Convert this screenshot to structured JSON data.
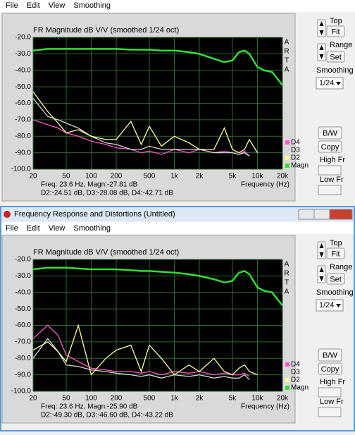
{
  "windows": [
    {
      "menu": [
        "File",
        "Edit",
        "View",
        "Smoothing"
      ],
      "controls": {
        "top": "Top",
        "fit": "Fit",
        "range": "Range",
        "set": "Set",
        "smoothing": "Smoothing",
        "smoothing_value": "1/24",
        "bw": "B/W",
        "copy": "Copy",
        "high_fr": "High Fr",
        "low_fr": "Low Fr"
      }
    },
    {
      "title": "Frequency Response and Distortions (Untitled)",
      "menu": [
        "File",
        "Edit",
        "View",
        "Smoothing"
      ],
      "controls": {
        "top": "Top",
        "fit": "Fit",
        "range": "Range",
        "set": "Set",
        "smoothing": "Smoothing",
        "smoothing_value": "1/24",
        "bw": "B/W",
        "copy": "Copy",
        "high_fr": "High Fr",
        "low_fr": "Low Fr"
      }
    }
  ],
  "chart_data": [
    {
      "type": "line",
      "title": "FR Magnitude dB V/V (smoothed 1/24 oct)",
      "x_label": "Frequency (Hz)",
      "side_letters": [
        "A",
        "R",
        "T",
        "A"
      ],
      "annotations": [
        "Freq: 23.6 Hz, Magn:-27.81 dB",
        "D2:-24.51 dB, D3:-28.08 dB, D4:-42.71 dB"
      ],
      "log_x": true,
      "grid": true,
      "xlim": [
        20,
        20000
      ],
      "ylim": [
        -100,
        -20
      ],
      "xticks": [
        20,
        50,
        100,
        200,
        500,
        {
          "value": 1000,
          "label": "1k"
        },
        {
          "value": 2000,
          "label": "2k"
        },
        {
          "value": 5000,
          "label": "5k"
        },
        {
          "value": 10000,
          "label": "10k"
        },
        {
          "value": 20000,
          "label": "20k"
        }
      ],
      "yticks": [
        {
          "value": -20,
          "label": "-20.0"
        },
        {
          "value": -30,
          "label": "-30.0"
        },
        {
          "value": -40,
          "label": "-40.0"
        },
        {
          "value": -50,
          "label": "-50.0"
        },
        {
          "value": -60,
          "label": "-60.0"
        },
        {
          "value": -70,
          "label": "-70.0"
        },
        {
          "value": -80,
          "label": "-80.0"
        },
        {
          "value": -90,
          "label": "-90.0"
        },
        {
          "value": -100,
          "label": "-100.0"
        }
      ],
      "x": [
        20,
        30,
        40,
        50,
        70,
        100,
        150,
        200,
        300,
        400,
        500,
        700,
        1000,
        1500,
        2000,
        3000,
        4000,
        5000,
        6000,
        7000,
        8000,
        10000,
        12000,
        15000,
        20000
      ],
      "series": [
        {
          "name": "D4",
          "color": "#ff55cc",
          "values": [
            -70,
            -73,
            -75,
            -78,
            -80,
            -83,
            -85,
            -87,
            -88,
            -90,
            -89,
            -91,
            -88,
            -90,
            -88,
            -90,
            -89,
            -90,
            -91,
            -89,
            -92,
            null,
            null,
            null,
            null
          ]
        },
        {
          "name": "D3",
          "color": "#d8d8d8",
          "values": [
            -57,
            -68,
            -70,
            -72,
            -75,
            -80,
            -84,
            -85,
            -88,
            -88,
            -86,
            -88,
            -88,
            -88,
            -88,
            -90,
            -90,
            -90,
            -91,
            -90,
            -92,
            null,
            null,
            null,
            null
          ]
        },
        {
          "name": "D2",
          "color": "#ffff99",
          "values": [
            -53,
            -65,
            -72,
            -78,
            -76,
            -80,
            -82,
            -82,
            -71,
            -85,
            -74,
            -86,
            -80,
            -84,
            -88,
            -88,
            -75,
            -88,
            -90,
            -88,
            -82,
            -90,
            null,
            null,
            null
          ]
        },
        {
          "name": "Magn",
          "color": "#33dd33",
          "values": [
            -28,
            -27,
            -27,
            -27,
            -27,
            -27,
            -27,
            -27,
            -27.5,
            -27.5,
            -27.5,
            -28,
            -28,
            -29,
            -30,
            -33,
            -35,
            -34,
            -29,
            -28,
            -30,
            -38,
            -40,
            -41,
            -49
          ]
        }
      ]
    },
    {
      "type": "line",
      "title": "FR Magnitude dB V/V (smoothed 1/24 oct)",
      "x_label": "Frequency (Hz)",
      "side_letters": [
        "A",
        "R",
        "T",
        "A"
      ],
      "annotations": [
        "Freq: 23.6 Hz, Magn:-25.90 dB",
        "D2:-49.30 dB, D3:-46.60 dB, D4:-43.22 dB"
      ],
      "log_x": true,
      "grid": true,
      "xlim": [
        20,
        20000
      ],
      "ylim": [
        -100,
        -20
      ],
      "xticks": [
        20,
        50,
        100,
        200,
        500,
        {
          "value": 1000,
          "label": "1k"
        },
        {
          "value": 2000,
          "label": "2k"
        },
        {
          "value": 5000,
          "label": "5k"
        },
        {
          "value": 10000,
          "label": "10k"
        },
        {
          "value": 20000,
          "label": "20k"
        }
      ],
      "yticks": [
        {
          "value": -20,
          "label": "-20.0"
        },
        {
          "value": -30,
          "label": "-30.0"
        },
        {
          "value": -40,
          "label": "-40.0"
        },
        {
          "value": -50,
          "label": "-50.0"
        },
        {
          "value": -60,
          "label": "-60.0"
        },
        {
          "value": -70,
          "label": "-70.0"
        },
        {
          "value": -80,
          "label": "-80.0"
        },
        {
          "value": -90,
          "label": "-90.0"
        },
        {
          "value": -100,
          "label": "-100.0"
        }
      ],
      "x": [
        20,
        30,
        40,
        50,
        70,
        100,
        150,
        200,
        300,
        400,
        500,
        700,
        1000,
        1500,
        2000,
        3000,
        4000,
        5000,
        6000,
        7000,
        8000,
        10000,
        12000,
        15000,
        20000
      ],
      "series": [
        {
          "name": "D4",
          "color": "#ff55cc",
          "values": [
            -68,
            -60,
            -66,
            -78,
            -82,
            -86,
            -87,
            -88,
            -88,
            -89,
            -88,
            -90,
            -88,
            -89,
            -88,
            -90,
            -89,
            -90,
            -90,
            -89,
            -91,
            null,
            null,
            null,
            null
          ]
        },
        {
          "name": "D3",
          "color": "#d8d8d8",
          "values": [
            -80,
            -68,
            -76,
            -84,
            -85,
            -87,
            -88,
            -89,
            -90,
            -91,
            -90,
            -92,
            -90,
            -91,
            -90,
            -92,
            -91,
            -92,
            -92,
            -90,
            -93,
            null,
            null,
            null,
            null
          ]
        },
        {
          "name": "D2",
          "color": "#ffff99",
          "values": [
            -75,
            -70,
            -76,
            -82,
            -60,
            -90,
            -80,
            -75,
            -72,
            -88,
            -72,
            -80,
            -90,
            -84,
            -88,
            -80,
            -88,
            -90,
            -86,
            -84,
            -88,
            -90,
            null,
            null,
            null
          ]
        },
        {
          "name": "Magn",
          "color": "#33dd33",
          "values": [
            -26,
            -25,
            -25,
            -25,
            -25.5,
            -26,
            -26,
            -26,
            -26.5,
            -27,
            -27,
            -27.5,
            -28,
            -29,
            -30,
            -32,
            -34,
            -33,
            -28,
            -27,
            -29,
            -37,
            -39,
            -40,
            -48
          ]
        }
      ]
    }
  ]
}
